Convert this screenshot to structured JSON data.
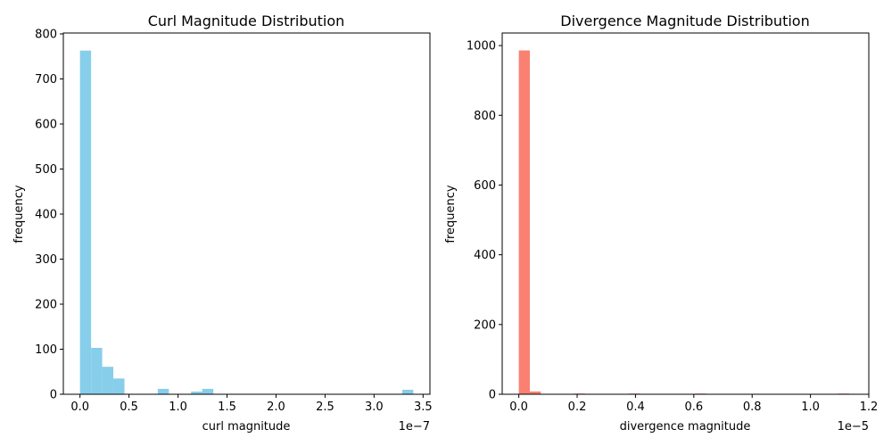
{
  "chart_data": [
    {
      "type": "bar",
      "title": "Curl Magnitude Distribution",
      "xlabel": "curl magnitude",
      "ylabel": "frequency",
      "offset_text": "1e−7",
      "color": "#87ceeb",
      "xlim": [
        -0.17,
        3.57
      ],
      "ylim": [
        0,
        802
      ],
      "xticks": [
        0.0,
        0.5,
        1.0,
        1.5,
        2.0,
        2.5,
        3.0,
        3.5
      ],
      "xtick_labels": [
        "0.0",
        "0.5",
        "1.0",
        "1.5",
        "2.0",
        "2.5",
        "3.0",
        "3.5"
      ],
      "yticks": [
        0,
        100,
        200,
        300,
        400,
        500,
        600,
        700,
        800
      ],
      "ytick_labels": [
        "0",
        "100",
        "200",
        "300",
        "400",
        "500",
        "600",
        "700",
        "800"
      ],
      "bin_width": 0.1133,
      "bin_starts": [
        0.0,
        0.1133,
        0.2267,
        0.34,
        0.4533,
        0.5667,
        0.68,
        0.7933,
        0.9067,
        1.02,
        1.1333,
        1.2467,
        1.36,
        1.4733,
        1.5867,
        1.7,
        1.8133,
        1.9267,
        2.04,
        2.1533,
        2.2667,
        2.38,
        2.4933,
        2.6067,
        2.72,
        2.8333,
        2.9467,
        3.06,
        3.1733,
        3.2867
      ],
      "values": [
        763,
        103,
        61,
        35,
        0,
        0,
        0,
        12,
        0,
        0,
        6,
        12,
        0,
        0,
        0,
        0,
        0,
        0,
        0,
        0,
        0,
        0,
        0,
        0,
        0,
        0,
        0,
        0,
        0,
        10
      ]
    },
    {
      "type": "bar",
      "title": "Divergence Magnitude Distribution",
      "xlabel": "divergence magnitude",
      "ylabel": "frequency",
      "offset_text": "1e−5",
      "color": "#fa8072",
      "xlim": [
        -0.057,
        1.2
      ],
      "ylim": [
        0,
        1036
      ],
      "xticks": [
        0.0,
        0.2,
        0.4,
        0.6,
        0.8,
        1.0,
        1.2
      ],
      "xtick_labels": [
        "0.0",
        "0.2",
        "0.4",
        "0.6",
        "0.8",
        "1.0",
        "1.2"
      ],
      "yticks": [
        0,
        200,
        400,
        600,
        800,
        1000
      ],
      "ytick_labels": [
        "0",
        "200",
        "400",
        "600",
        "800",
        "1000"
      ],
      "bin_width": 0.03775,
      "bin_starts": [
        0.0,
        0.03775,
        0.0755,
        0.11325,
        0.151,
        0.18875,
        0.2265,
        0.26425,
        0.302,
        0.33975,
        0.3775,
        0.41525,
        0.453,
        0.49075,
        0.5285,
        0.56625,
        0.604,
        0.64175,
        0.6795,
        0.71725,
        0.755,
        0.79275,
        0.8305,
        0.86825,
        0.906,
        0.94375,
        0.9815,
        1.01925,
        1.057,
        1.09475
      ],
      "values": [
        986,
        8,
        0,
        0,
        0,
        2,
        0,
        0,
        0,
        0,
        2,
        0,
        0,
        0,
        0,
        0,
        2,
        0,
        0,
        0,
        0,
        0,
        0,
        0,
        0,
        0,
        0,
        0,
        0,
        2
      ]
    }
  ]
}
